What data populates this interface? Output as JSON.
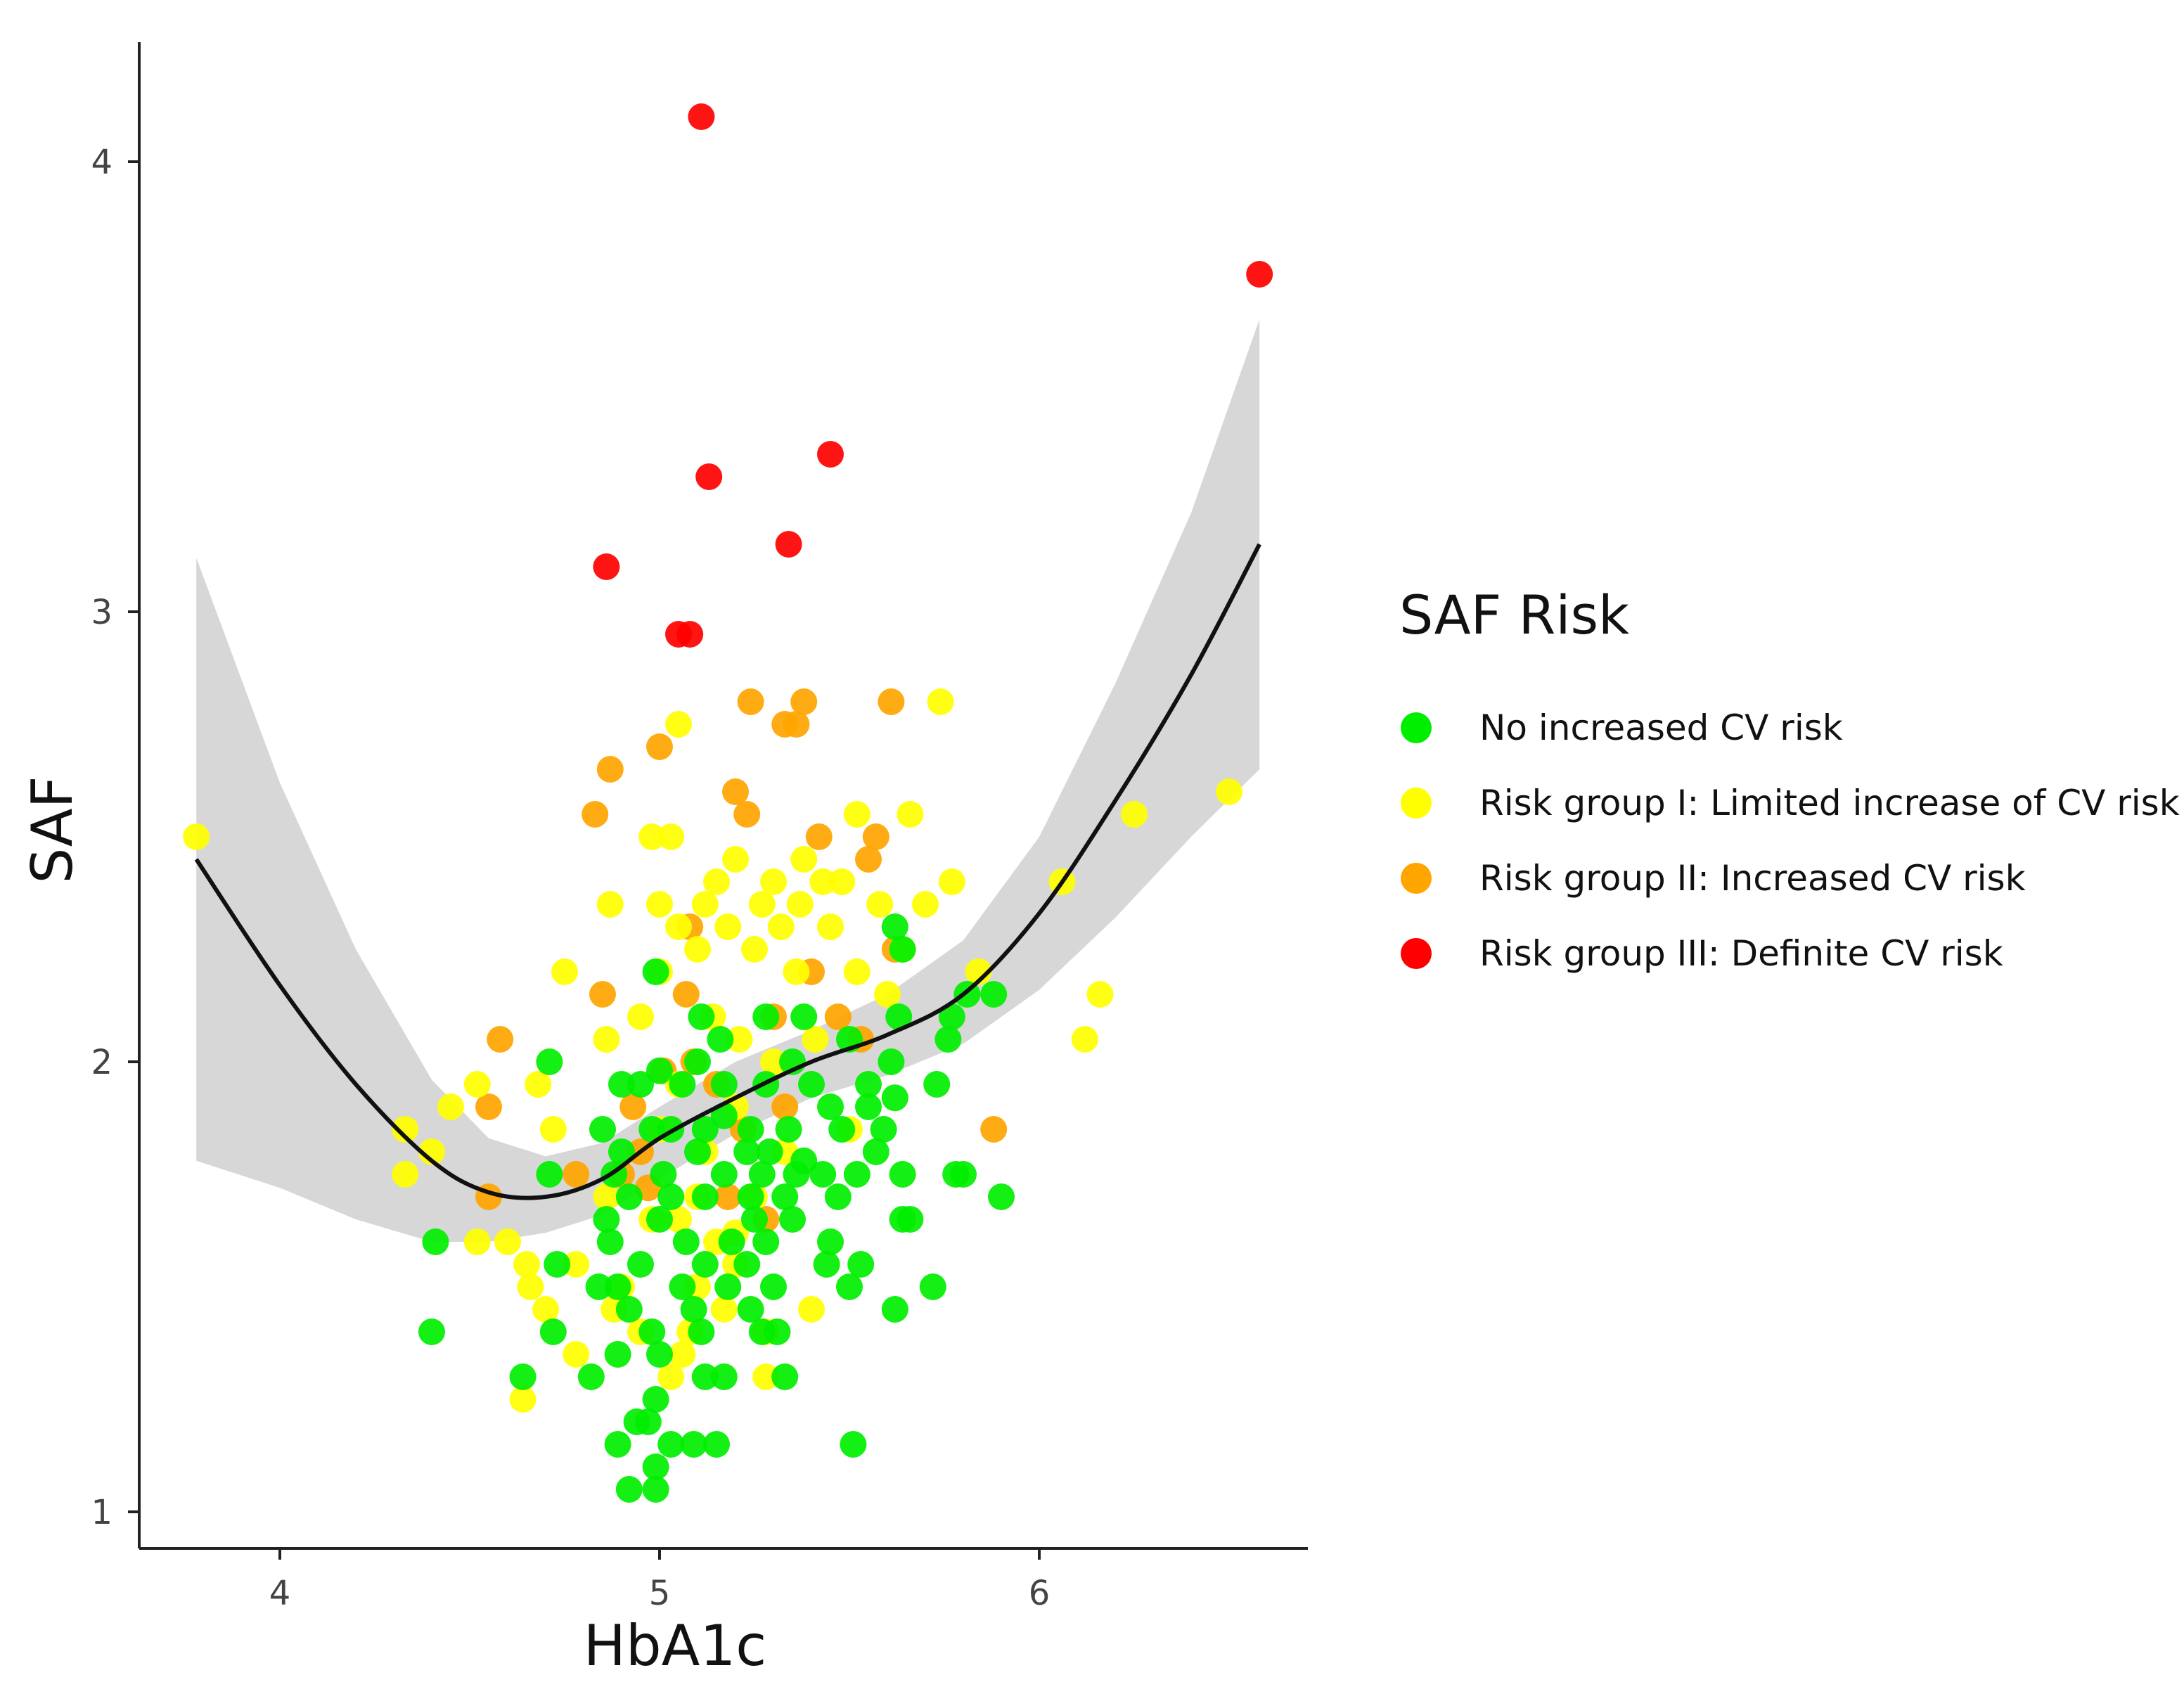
{
  "chart_data": {
    "type": "scatter",
    "title": "",
    "xlabel": "HbA1c",
    "ylabel": "SAF",
    "xlim": [
      3.63,
      6.7
    ],
    "ylim": [
      0.9,
      4.25
    ],
    "x_ticks": [
      4,
      5,
      6
    ],
    "y_ticks": [
      1,
      2,
      3,
      4
    ],
    "x_tick_labels": [
      "4",
      "5",
      "6"
    ],
    "y_tick_labels": [
      "1",
      "2",
      "3",
      "4"
    ],
    "grid": false,
    "legend": {
      "title": "SAF Risk",
      "position": "right",
      "entries": [
        {
          "key": "green",
          "label": "No increased CV risk"
        },
        {
          "key": "yellow",
          "label": "Risk group I: Limited increase of CV risk"
        },
        {
          "key": "orange",
          "label": "Risk group II: Increased CV risk"
        },
        {
          "key": "red",
          "label": "Risk group III: Definite CV risk"
        }
      ]
    },
    "colors": {
      "green": "#00ee00",
      "yellow": "#ffff00",
      "orange": "#ffa500",
      "red": "#ff0000",
      "ribbon": "#d3d3d3",
      "curve": "#111111",
      "axis": "#222222"
    },
    "trend": {
      "method": "smoothed fit",
      "x": [
        3.78,
        4.0,
        4.2,
        4.4,
        4.55,
        4.7,
        4.85,
        5.0,
        5.2,
        5.4,
        5.6,
        5.8,
        6.0,
        6.2,
        6.4,
        6.58
      ],
      "y": [
        2.45,
        2.17,
        1.95,
        1.78,
        1.71,
        1.7,
        1.74,
        1.83,
        1.92,
        2.0,
        2.06,
        2.15,
        2.33,
        2.58,
        2.86,
        3.15
      ],
      "lower": [
        1.78,
        1.72,
        1.65,
        1.6,
        1.6,
        1.62,
        1.66,
        1.74,
        1.84,
        1.92,
        1.97,
        2.04,
        2.16,
        2.32,
        2.5,
        2.65
      ],
      "upper": [
        3.12,
        2.62,
        2.25,
        1.96,
        1.83,
        1.79,
        1.82,
        1.9,
        2.0,
        2.07,
        2.15,
        2.27,
        2.5,
        2.84,
        3.22,
        3.65
      ]
    },
    "series": [
      {
        "name": "Risk group III: Definite CV risk",
        "color_key": "red",
        "points": [
          [
            5.11,
            4.1
          ],
          [
            6.58,
            3.75
          ],
          [
            5.45,
            3.35
          ],
          [
            5.13,
            3.3
          ],
          [
            5.34,
            3.15
          ],
          [
            4.86,
            3.1
          ],
          [
            5.05,
            2.95
          ],
          [
            5.08,
            2.95
          ]
        ]
      },
      {
        "name": "Risk group II: Increased CV risk",
        "color_key": "orange",
        "points": [
          [
            5.24,
            2.8
          ],
          [
            5.38,
            2.8
          ],
          [
            5.61,
            2.8
          ],
          [
            5.33,
            2.75
          ],
          [
            5.36,
            2.75
          ],
          [
            4.87,
            2.65
          ],
          [
            5.0,
            2.7
          ],
          [
            5.2,
            2.6
          ],
          [
            5.23,
            2.55
          ],
          [
            4.83,
            2.55
          ],
          [
            5.42,
            2.5
          ],
          [
            5.57,
            2.5
          ],
          [
            5.55,
            2.45
          ],
          [
            5.08,
            2.3
          ],
          [
            5.4,
            2.2
          ],
          [
            4.85,
            2.15
          ],
          [
            5.07,
            2.15
          ],
          [
            5.3,
            2.1
          ],
          [
            5.47,
            2.1
          ],
          [
            5.53,
            2.05
          ],
          [
            4.58,
            2.05
          ],
          [
            5.01,
            1.98
          ],
          [
            5.09,
            2.0
          ],
          [
            5.15,
            1.95
          ],
          [
            4.93,
            1.9
          ],
          [
            5.33,
            1.9
          ],
          [
            5.22,
            1.85
          ],
          [
            5.88,
            1.85
          ],
          [
            4.95,
            1.8
          ],
          [
            4.9,
            1.75
          ],
          [
            4.78,
            1.75
          ],
          [
            4.55,
            1.7
          ],
          [
            4.97,
            1.72
          ],
          [
            5.18,
            1.7
          ],
          [
            5.28,
            1.65
          ],
          [
            4.55,
            1.9
          ],
          [
            5.62,
            2.25
          ]
        ]
      },
      {
        "name": "Risk group I: Limited increase of CV risk",
        "color_key": "yellow",
        "points": [
          [
            5.74,
            2.8
          ],
          [
            5.05,
            2.75
          ],
          [
            3.78,
            2.5
          ],
          [
            4.98,
            2.5
          ],
          [
            5.03,
            2.5
          ],
          [
            5.52,
            2.55
          ],
          [
            5.66,
            2.55
          ],
          [
            6.25,
            2.55
          ],
          [
            6.5,
            2.6
          ],
          [
            5.2,
            2.45
          ],
          [
            5.38,
            2.45
          ],
          [
            6.06,
            2.4
          ],
          [
            5.77,
            2.4
          ],
          [
            5.15,
            2.4
          ],
          [
            5.3,
            2.4
          ],
          [
            5.43,
            2.4
          ],
          [
            5.48,
            2.4
          ],
          [
            4.87,
            2.35
          ],
          [
            5.0,
            2.35
          ],
          [
            5.12,
            2.35
          ],
          [
            5.27,
            2.35
          ],
          [
            5.37,
            2.35
          ],
          [
            5.58,
            2.35
          ],
          [
            5.7,
            2.35
          ],
          [
            5.05,
            2.3
          ],
          [
            5.18,
            2.3
          ],
          [
            5.32,
            2.3
          ],
          [
            5.45,
            2.3
          ],
          [
            5.64,
            2.25
          ],
          [
            5.1,
            2.25
          ],
          [
            5.25,
            2.25
          ],
          [
            5.36,
            2.2
          ],
          [
            5.52,
            2.2
          ],
          [
            4.75,
            2.2
          ],
          [
            5.84,
            2.2
          ],
          [
            5.0,
            2.2
          ],
          [
            5.6,
            2.15
          ],
          [
            6.16,
            2.15
          ],
          [
            4.95,
            2.1
          ],
          [
            5.14,
            2.1
          ],
          [
            5.21,
            2.05
          ],
          [
            6.12,
            2.05
          ],
          [
            4.86,
            2.05
          ],
          [
            5.41,
            2.05
          ],
          [
            5.3,
            2.0
          ],
          [
            4.45,
            1.9
          ],
          [
            4.68,
            1.95
          ],
          [
            4.52,
            1.95
          ],
          [
            5.05,
            1.95
          ],
          [
            5.2,
            1.9
          ],
          [
            4.33,
            1.85
          ],
          [
            4.72,
            1.85
          ],
          [
            5.5,
            1.85
          ],
          [
            5.0,
            1.85
          ],
          [
            4.4,
            1.8
          ],
          [
            5.33,
            1.8
          ],
          [
            4.33,
            1.75
          ],
          [
            4.86,
            1.7
          ],
          [
            4.98,
            1.65
          ],
          [
            5.05,
            1.65
          ],
          [
            5.1,
            1.7
          ],
          [
            5.25,
            1.7
          ],
          [
            4.52,
            1.6
          ],
          [
            4.65,
            1.55
          ],
          [
            4.78,
            1.55
          ],
          [
            4.66,
            1.5
          ],
          [
            4.9,
            1.5
          ],
          [
            5.15,
            1.6
          ],
          [
            5.2,
            1.55
          ],
          [
            5.1,
            1.5
          ],
          [
            4.7,
            1.45
          ],
          [
            4.95,
            1.4
          ],
          [
            5.08,
            1.4
          ],
          [
            5.17,
            1.45
          ],
          [
            5.28,
            1.4
          ],
          [
            5.4,
            1.45
          ],
          [
            4.78,
            1.35
          ],
          [
            5.06,
            1.35
          ],
          [
            5.03,
            1.3
          ],
          [
            5.28,
            1.3
          ],
          [
            4.64,
            1.25
          ],
          [
            4.88,
            1.45
          ],
          [
            5.2,
            1.62
          ],
          [
            4.6,
            1.6
          ],
          [
            5.12,
            1.8
          ]
        ]
      },
      {
        "name": "No increased CV risk",
        "color_key": "green",
        "points": [
          [
            5.62,
            2.3
          ],
          [
            5.64,
            2.25
          ],
          [
            4.99,
            2.2
          ],
          [
            5.81,
            2.15
          ],
          [
            5.88,
            2.15
          ],
          [
            5.77,
            2.1
          ],
          [
            5.63,
            2.1
          ],
          [
            5.11,
            2.1
          ],
          [
            5.28,
            2.1
          ],
          [
            5.38,
            2.1
          ],
          [
            5.16,
            2.05
          ],
          [
            5.5,
            2.05
          ],
          [
            5.76,
            2.05
          ],
          [
            4.71,
            2.0
          ],
          [
            5.1,
            2.0
          ],
          [
            5.35,
            2.0
          ],
          [
            5.61,
            2.0
          ],
          [
            5.0,
            1.98
          ],
          [
            4.9,
            1.95
          ],
          [
            4.95,
            1.95
          ],
          [
            5.06,
            1.95
          ],
          [
            5.17,
            1.95
          ],
          [
            5.28,
            1.95
          ],
          [
            5.4,
            1.95
          ],
          [
            5.55,
            1.95
          ],
          [
            5.73,
            1.95
          ],
          [
            5.62,
            1.92
          ],
          [
            5.45,
            1.9
          ],
          [
            5.55,
            1.9
          ],
          [
            5.17,
            1.88
          ],
          [
            4.85,
            1.85
          ],
          [
            4.98,
            1.85
          ],
          [
            5.03,
            1.85
          ],
          [
            5.12,
            1.85
          ],
          [
            5.24,
            1.85
          ],
          [
            5.34,
            1.85
          ],
          [
            5.48,
            1.85
          ],
          [
            5.59,
            1.85
          ],
          [
            5.57,
            1.8
          ],
          [
            4.9,
            1.8
          ],
          [
            5.1,
            1.8
          ],
          [
            5.23,
            1.8
          ],
          [
            5.29,
            1.8
          ],
          [
            5.38,
            1.78
          ],
          [
            4.71,
            1.75
          ],
          [
            4.88,
            1.75
          ],
          [
            5.01,
            1.75
          ],
          [
            5.17,
            1.75
          ],
          [
            5.27,
            1.75
          ],
          [
            5.36,
            1.75
          ],
          [
            5.43,
            1.75
          ],
          [
            5.52,
            1.75
          ],
          [
            5.64,
            1.75
          ],
          [
            5.78,
            1.75
          ],
          [
            5.8,
            1.75
          ],
          [
            4.92,
            1.7
          ],
          [
            5.03,
            1.7
          ],
          [
            5.12,
            1.7
          ],
          [
            5.24,
            1.7
          ],
          [
            5.33,
            1.7
          ],
          [
            5.47,
            1.7
          ],
          [
            5.9,
            1.7
          ],
          [
            5.64,
            1.65
          ],
          [
            5.66,
            1.65
          ],
          [
            4.86,
            1.65
          ],
          [
            5.0,
            1.65
          ],
          [
            5.25,
            1.65
          ],
          [
            5.35,
            1.65
          ],
          [
            4.41,
            1.6
          ],
          [
            4.87,
            1.6
          ],
          [
            5.07,
            1.6
          ],
          [
            5.19,
            1.6
          ],
          [
            5.28,
            1.6
          ],
          [
            5.45,
            1.6
          ],
          [
            4.73,
            1.55
          ],
          [
            4.95,
            1.55
          ],
          [
            5.12,
            1.55
          ],
          [
            5.23,
            1.55
          ],
          [
            5.44,
            1.55
          ],
          [
            5.53,
            1.55
          ],
          [
            4.84,
            1.5
          ],
          [
            4.89,
            1.5
          ],
          [
            5.06,
            1.5
          ],
          [
            5.18,
            1.5
          ],
          [
            5.3,
            1.5
          ],
          [
            5.5,
            1.5
          ],
          [
            5.72,
            1.5
          ],
          [
            4.92,
            1.45
          ],
          [
            5.09,
            1.45
          ],
          [
            5.24,
            1.45
          ],
          [
            5.62,
            1.45
          ],
          [
            4.4,
            1.4
          ],
          [
            4.72,
            1.4
          ],
          [
            4.98,
            1.4
          ],
          [
            5.11,
            1.4
          ],
          [
            5.27,
            1.4
          ],
          [
            5.31,
            1.4
          ],
          [
            4.89,
            1.35
          ],
          [
            5.0,
            1.35
          ],
          [
            4.64,
            1.3
          ],
          [
            4.82,
            1.3
          ],
          [
            5.12,
            1.3
          ],
          [
            5.17,
            1.3
          ],
          [
            5.33,
            1.3
          ],
          [
            4.99,
            1.25
          ],
          [
            4.97,
            1.2
          ],
          [
            4.94,
            1.2
          ],
          [
            4.89,
            1.15
          ],
          [
            5.03,
            1.15
          ],
          [
            5.09,
            1.15
          ],
          [
            5.15,
            1.15
          ],
          [
            5.51,
            1.15
          ],
          [
            4.99,
            1.1
          ],
          [
            4.92,
            1.05
          ],
          [
            4.99,
            1.05
          ]
        ]
      }
    ]
  }
}
